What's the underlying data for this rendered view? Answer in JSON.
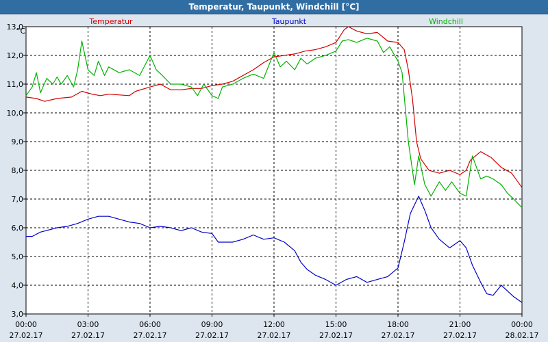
{
  "window": {
    "title": "Temperatur, Taupunkt, Windchill [°C]"
  },
  "chart_data": {
    "type": "line",
    "title": "Temperatur, Taupunkt, Windchill [°C]",
    "ylabel": "°C",
    "ylim": [
      3.0,
      13.0
    ],
    "yticks": [
      "3,0",
      "4,0",
      "5,0",
      "6,0",
      "7,0",
      "8,0",
      "9,0",
      "10,0",
      "11,0",
      "12,0",
      "13,0"
    ],
    "xticks": [
      {
        "time": "00:00",
        "date": "27.02.17"
      },
      {
        "time": "03:00",
        "date": "27.02.17"
      },
      {
        "time": "06:00",
        "date": "27.02.17"
      },
      {
        "time": "09:00",
        "date": "27.02.17"
      },
      {
        "time": "12:00",
        "date": "27.02.17"
      },
      {
        "time": "15:00",
        "date": "27.02.17"
      },
      {
        "time": "18:00",
        "date": "27.02.17"
      },
      {
        "time": "21:00",
        "date": "27.02.17"
      },
      {
        "time": "00:00",
        "date": "28.02.17"
      }
    ],
    "grid": true,
    "x_unit": "hours since 27.02.17 00:00",
    "series": [
      {
        "name": "Temperatur",
        "color": "#d40000",
        "points": [
          [
            0,
            10.55
          ],
          [
            0.5,
            10.5
          ],
          [
            0.9,
            10.4
          ],
          [
            1.5,
            10.5
          ],
          [
            2.2,
            10.55
          ],
          [
            2.7,
            10.75
          ],
          [
            3.2,
            10.65
          ],
          [
            3.6,
            10.6
          ],
          [
            4,
            10.65
          ],
          [
            5,
            10.6
          ],
          [
            5.3,
            10.75
          ],
          [
            6,
            10.9
          ],
          [
            6.5,
            11.0
          ],
          [
            7,
            10.8
          ],
          [
            7.5,
            10.8
          ],
          [
            8,
            10.85
          ],
          [
            8.5,
            10.85
          ],
          [
            9,
            10.95
          ],
          [
            9.5,
            11.0
          ],
          [
            10,
            11.1
          ],
          [
            11,
            11.5
          ],
          [
            11.5,
            11.75
          ],
          [
            12,
            11.95
          ],
          [
            12.5,
            12.0
          ],
          [
            13,
            12.05
          ],
          [
            13.5,
            12.15
          ],
          [
            14,
            12.2
          ],
          [
            14.5,
            12.3
          ],
          [
            15,
            12.45
          ],
          [
            15.4,
            12.9
          ],
          [
            15.6,
            13.0
          ],
          [
            16,
            12.85
          ],
          [
            16.5,
            12.75
          ],
          [
            17,
            12.8
          ],
          [
            17.5,
            12.5
          ],
          [
            18,
            12.45
          ],
          [
            18.3,
            12.2
          ],
          [
            18.5,
            11.5
          ],
          [
            18.7,
            10.5
          ],
          [
            18.9,
            9.0
          ],
          [
            19.1,
            8.4
          ],
          [
            19.5,
            8.0
          ],
          [
            20,
            7.9
          ],
          [
            20.5,
            8.0
          ],
          [
            21,
            7.85
          ],
          [
            21.3,
            8.0
          ],
          [
            21.5,
            8.35
          ],
          [
            22,
            8.65
          ],
          [
            22.5,
            8.45
          ],
          [
            23,
            8.1
          ],
          [
            23.5,
            7.9
          ],
          [
            23.8,
            7.6
          ],
          [
            24,
            7.4
          ]
        ]
      },
      {
        "name": "Taupunkt",
        "color": "#0000c8",
        "points": [
          [
            0,
            5.7
          ],
          [
            0.3,
            5.7
          ],
          [
            0.7,
            5.85
          ],
          [
            1.5,
            6.0
          ],
          [
            2,
            6.05
          ],
          [
            2.5,
            6.15
          ],
          [
            3,
            6.3
          ],
          [
            3.5,
            6.4
          ],
          [
            4,
            6.4
          ],
          [
            4.5,
            6.3
          ],
          [
            5,
            6.2
          ],
          [
            5.5,
            6.15
          ],
          [
            6,
            6.0
          ],
          [
            6.5,
            6.05
          ],
          [
            7,
            6.0
          ],
          [
            7.5,
            5.9
          ],
          [
            8,
            6.0
          ],
          [
            8.5,
            5.85
          ],
          [
            9,
            5.8
          ],
          [
            9.3,
            5.5
          ],
          [
            10,
            5.5
          ],
          [
            10.5,
            5.6
          ],
          [
            11,
            5.75
          ],
          [
            11.5,
            5.6
          ],
          [
            12,
            5.65
          ],
          [
            12.5,
            5.5
          ],
          [
            13,
            5.2
          ],
          [
            13.3,
            4.8
          ],
          [
            13.6,
            4.55
          ],
          [
            14,
            4.35
          ],
          [
            14.5,
            4.2
          ],
          [
            15,
            4.0
          ],
          [
            15.5,
            4.2
          ],
          [
            16,
            4.3
          ],
          [
            16.5,
            4.1
          ],
          [
            17,
            4.2
          ],
          [
            17.5,
            4.3
          ],
          [
            18,
            4.6
          ],
          [
            18.3,
            5.5
          ],
          [
            18.6,
            6.5
          ],
          [
            19,
            7.1
          ],
          [
            19.3,
            6.6
          ],
          [
            19.6,
            6.0
          ],
          [
            20,
            5.6
          ],
          [
            20.5,
            5.3
          ],
          [
            21,
            5.55
          ],
          [
            21.3,
            5.3
          ],
          [
            21.6,
            4.7
          ],
          [
            22,
            4.1
          ],
          [
            22.3,
            3.7
          ],
          [
            22.6,
            3.65
          ],
          [
            23,
            4.0
          ],
          [
            23.3,
            3.8
          ],
          [
            23.6,
            3.6
          ],
          [
            24,
            3.4
          ]
        ]
      },
      {
        "name": "Windchill",
        "color": "#00b400",
        "points": [
          [
            0,
            10.6
          ],
          [
            0.3,
            10.9
          ],
          [
            0.5,
            11.4
          ],
          [
            0.7,
            10.7
          ],
          [
            1.0,
            11.2
          ],
          [
            1.3,
            11.0
          ],
          [
            1.5,
            11.25
          ],
          [
            1.7,
            11.0
          ],
          [
            2.0,
            11.3
          ],
          [
            2.3,
            10.9
          ],
          [
            2.5,
            11.5
          ],
          [
            2.7,
            12.5
          ],
          [
            3.0,
            11.5
          ],
          [
            3.3,
            11.3
          ],
          [
            3.5,
            11.8
          ],
          [
            3.8,
            11.3
          ],
          [
            4.0,
            11.6
          ],
          [
            4.5,
            11.4
          ],
          [
            5.0,
            11.5
          ],
          [
            5.5,
            11.3
          ],
          [
            6.0,
            12.0
          ],
          [
            6.3,
            11.5
          ],
          [
            6.6,
            11.3
          ],
          [
            7.0,
            11.0
          ],
          [
            7.5,
            11.0
          ],
          [
            8.0,
            10.9
          ],
          [
            8.3,
            10.6
          ],
          [
            8.6,
            11.0
          ],
          [
            9.0,
            10.6
          ],
          [
            9.3,
            10.5
          ],
          [
            9.5,
            10.9
          ],
          [
            10.0,
            11.0
          ],
          [
            10.5,
            11.2
          ],
          [
            11.0,
            11.35
          ],
          [
            11.5,
            11.2
          ],
          [
            12.0,
            12.1
          ],
          [
            12.3,
            11.6
          ],
          [
            12.6,
            11.8
          ],
          [
            13.0,
            11.5
          ],
          [
            13.3,
            11.9
          ],
          [
            13.6,
            11.7
          ],
          [
            14.0,
            11.9
          ],
          [
            14.5,
            12.0
          ],
          [
            15.0,
            12.15
          ],
          [
            15.3,
            12.5
          ],
          [
            15.6,
            12.55
          ],
          [
            16.0,
            12.45
          ],
          [
            16.5,
            12.6
          ],
          [
            17.0,
            12.5
          ],
          [
            17.3,
            12.1
          ],
          [
            17.6,
            12.3
          ],
          [
            18.0,
            11.8
          ],
          [
            18.2,
            11.4
          ],
          [
            18.5,
            9.0
          ],
          [
            18.8,
            7.5
          ],
          [
            19.0,
            8.5
          ],
          [
            19.3,
            7.5
          ],
          [
            19.6,
            7.1
          ],
          [
            20.0,
            7.6
          ],
          [
            20.3,
            7.3
          ],
          [
            20.6,
            7.6
          ],
          [
            21.0,
            7.2
          ],
          [
            21.3,
            7.1
          ],
          [
            21.6,
            8.5
          ],
          [
            22.0,
            7.7
          ],
          [
            22.3,
            7.8
          ],
          [
            22.6,
            7.7
          ],
          [
            23.0,
            7.5
          ],
          [
            23.3,
            7.2
          ],
          [
            23.6,
            7.0
          ],
          [
            24.0,
            6.7
          ]
        ]
      }
    ]
  }
}
